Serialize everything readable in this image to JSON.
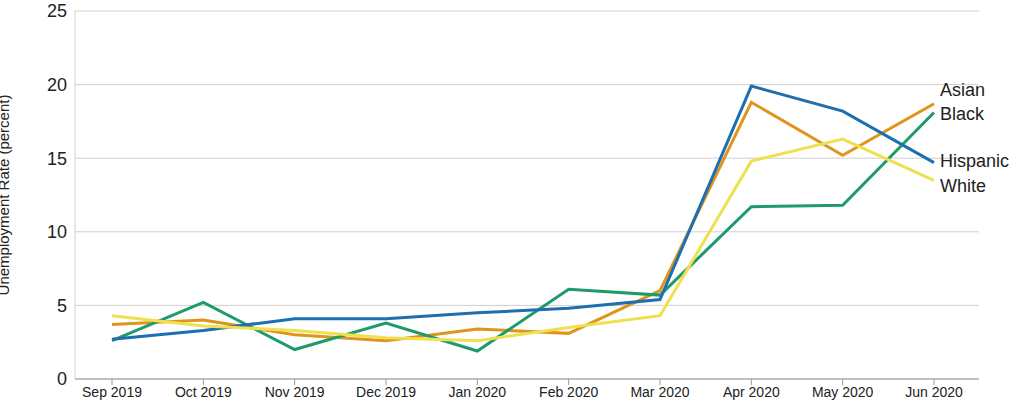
{
  "chart_data": {
    "type": "line",
    "y_label": "Unemployment Rate (percent)",
    "categories": [
      "Sep 2019",
      "Oct 2019",
      "Nov 2019",
      "Dec 2019",
      "Jan 2020",
      "Feb 2020",
      "Mar 2020",
      "Apr 2020",
      "May 2020",
      "Jun 2020"
    ],
    "series": [
      {
        "name": "Asian",
        "color": "#df951c",
        "values": [
          3.7,
          4.0,
          3.0,
          2.6,
          3.4,
          3.1,
          6.0,
          18.8,
          15.2,
          18.7
        ]
      },
      {
        "name": "Black",
        "color": "#1f9a6b",
        "values": [
          2.6,
          5.2,
          2.0,
          3.8,
          1.9,
          6.1,
          5.7,
          11.7,
          11.8,
          18.1
        ]
      },
      {
        "name": "Hispanic",
        "color": "#1e6fb0",
        "values": [
          2.7,
          3.3,
          4.1,
          4.1,
          4.5,
          4.8,
          5.4,
          19.9,
          18.2,
          14.7
        ]
      },
      {
        "name": "White",
        "color": "#efe04f",
        "values": [
          4.3,
          3.6,
          3.3,
          2.8,
          2.6,
          3.5,
          4.3,
          14.8,
          16.3,
          13.5
        ]
      }
    ],
    "ylim": [
      0,
      25
    ],
    "yticks": [
      0,
      5,
      10,
      15,
      20,
      25
    ],
    "grid": true
  }
}
